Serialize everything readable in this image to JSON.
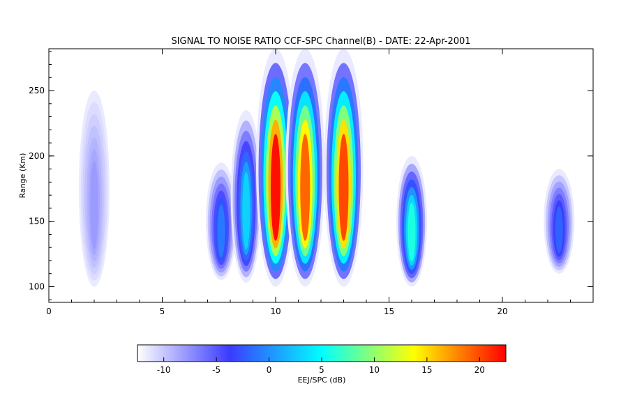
{
  "chart_data": {
    "type": "heatmap",
    "title": "SIGNAL TO NOISE RATIO CCF-SPC Channel(B) - DATE: 22-Apr-2001",
    "xlabel": "",
    "ylabel": "Range (Km)",
    "xlim": [
      0,
      24
    ],
    "ylim": [
      88,
      282
    ],
    "x_ticks": [
      0,
      5,
      10,
      15,
      20
    ],
    "y_ticks": [
      100,
      150,
      200,
      250
    ],
    "colorbar": {
      "label": "EEJ/SPC (dB)",
      "range": [
        -12.5,
        22.5
      ],
      "ticks": [
        -10,
        -5,
        0,
        5,
        10,
        15,
        20
      ],
      "colormap": [
        "#ffffff",
        "#3b3bff",
        "#00ffff",
        "#ffff00",
        "#ff0000"
      ]
    },
    "features": [
      {
        "x": 2.0,
        "y_range": [
          100,
          250
        ],
        "peak_snr": -8
      },
      {
        "x": 7.6,
        "y_range": [
          105,
          195
        ],
        "peak_snr": -1
      },
      {
        "x": 8.7,
        "y_range": [
          103,
          235
        ],
        "peak_snr": 3
      },
      {
        "x": 10.0,
        "y_range": [
          100,
          282
        ],
        "peak_snr": 22
      },
      {
        "x": 11.3,
        "y_range": [
          100,
          282
        ],
        "peak_snr": 19
      },
      {
        "x": 13.0,
        "y_range": [
          100,
          282
        ],
        "peak_snr": 20
      },
      {
        "x": 16.0,
        "y_range": [
          100,
          200
        ],
        "peak_snr": 6
      },
      {
        "x": 22.5,
        "y_range": [
          110,
          190
        ],
        "peak_snr": -2
      }
    ]
  }
}
